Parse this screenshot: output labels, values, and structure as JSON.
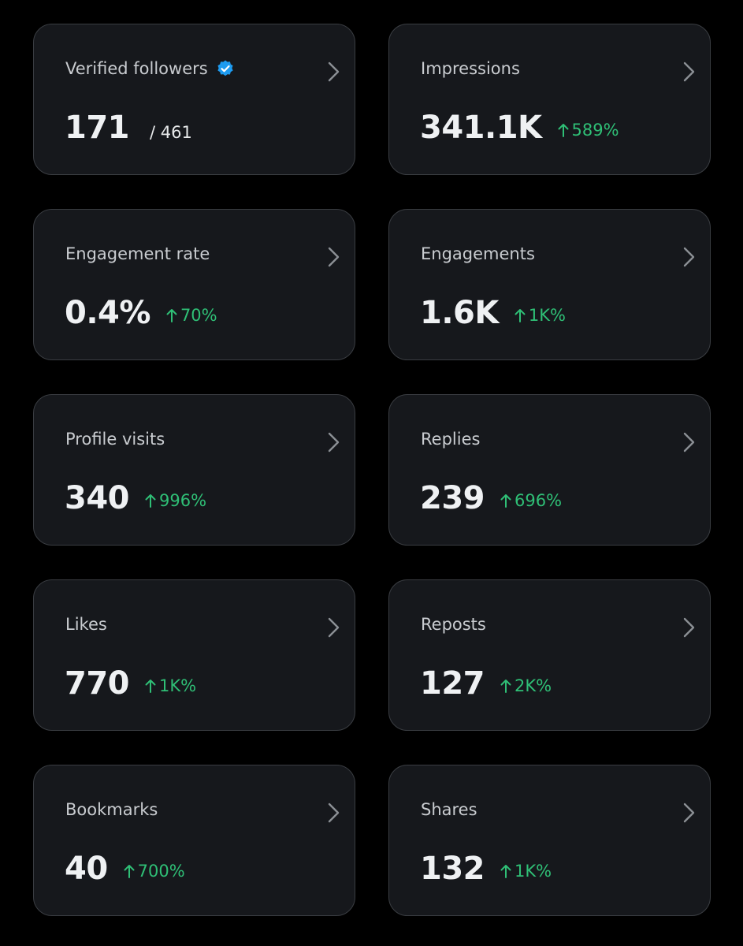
{
  "cards": [
    {
      "label": "Verified followers",
      "value": "171",
      "total": "/ 461",
      "verified": true
    },
    {
      "label": "Impressions",
      "value": "341.1K",
      "change": "589%"
    },
    {
      "label": "Engagement rate",
      "value": "0.4%",
      "change": "70%"
    },
    {
      "label": "Engagements",
      "value": "1.6K",
      "change": "1K%"
    },
    {
      "label": "Profile visits",
      "value": "340",
      "change": "996%"
    },
    {
      "label": "Replies",
      "value": "239",
      "change": "696%"
    },
    {
      "label": "Likes",
      "value": "770",
      "change": "1K%"
    },
    {
      "label": "Reposts",
      "value": "127",
      "change": "2K%"
    },
    {
      "label": "Bookmarks",
      "value": "40",
      "change": "700%"
    },
    {
      "label": "Shares",
      "value": "132",
      "change": "1K%"
    }
  ]
}
